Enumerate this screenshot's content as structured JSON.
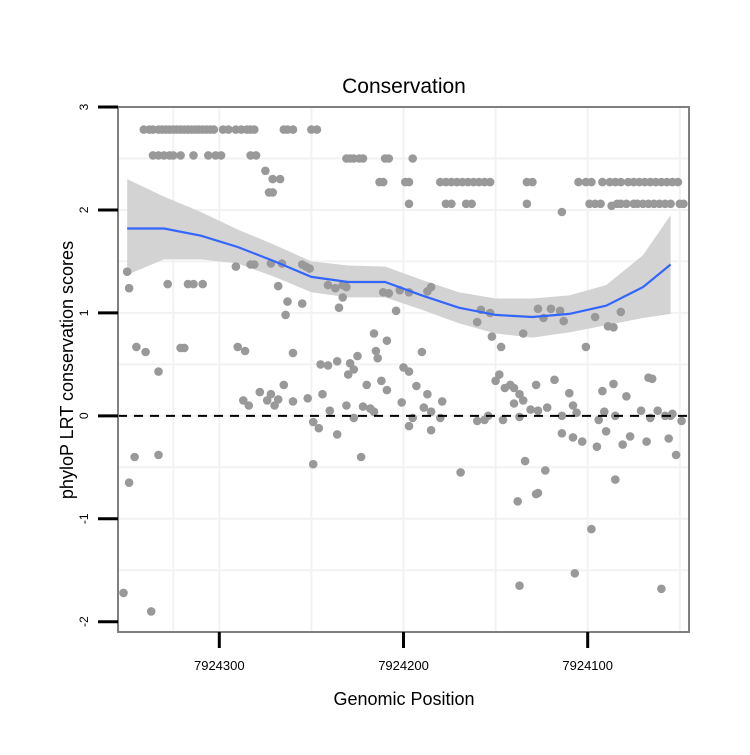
{
  "chart_data": {
    "type": "scatter",
    "title": "Conservation",
    "xlabel": "Genomic Position",
    "ylabel": "phyloP LRT conservation scores",
    "x_reversed": true,
    "xlim": [
      7924355,
      7924045
    ],
    "ylim": [
      -2.1,
      3.0
    ],
    "x_ticks": [
      7924300,
      7924200,
      7924100
    ],
    "x_tick_labels": [
      "7924300",
      "7924200",
      "7924100"
    ],
    "y_ticks": [
      -2,
      -1,
      0,
      1,
      2,
      3
    ],
    "y_tick_labels": [
      "-2",
      "-1",
      "0",
      "1",
      "2",
      "3"
    ],
    "reference_line": {
      "y": 0,
      "style": "dashed"
    },
    "colors": {
      "points": "#999999",
      "smooth_line": "#3366FF",
      "ribbon": "#D3D3D3",
      "panel_border": "#7f7f7f",
      "grid": "#f2f2f2",
      "reference": "#000000"
    },
    "points_series": {
      "name": "phyloP scores",
      "points": [
        [
          7924341,
          2.78
        ],
        [
          7924338,
          2.78
        ],
        [
          7924336,
          2.78
        ],
        [
          7924333,
          2.78
        ],
        [
          7924331,
          2.78
        ],
        [
          7924329,
          2.78
        ],
        [
          7924327,
          2.78
        ],
        [
          7924325,
          2.78
        ],
        [
          7924323,
          2.78
        ],
        [
          7924321,
          2.78
        ],
        [
          7924319,
          2.78
        ],
        [
          7924317,
          2.78
        ],
        [
          7924315,
          2.78
        ],
        [
          7924313,
          2.78
        ],
        [
          7924311,
          2.78
        ],
        [
          7924309,
          2.78
        ],
        [
          7924307,
          2.78
        ],
        [
          7924305,
          2.78
        ],
        [
          7924303,
          2.78
        ],
        [
          7924298,
          2.78
        ],
        [
          7924295,
          2.78
        ],
        [
          7924291,
          2.78
        ],
        [
          7924288,
          2.78
        ],
        [
          7924285,
          2.78
        ],
        [
          7924283,
          2.78
        ],
        [
          7924281,
          2.78
        ],
        [
          7924265,
          2.78
        ],
        [
          7924263,
          2.78
        ],
        [
          7924260,
          2.78
        ],
        [
          7924250,
          2.78
        ],
        [
          7924247,
          2.78
        ],
        [
          7924336,
          2.53
        ],
        [
          7924333,
          2.53
        ],
        [
          7924330,
          2.53
        ],
        [
          7924327,
          2.53
        ],
        [
          7924325,
          2.53
        ],
        [
          7924321,
          2.53
        ],
        [
          7924314,
          2.53
        ],
        [
          7924306,
          2.53
        ],
        [
          7924302,
          2.53
        ],
        [
          7924299,
          2.53
        ],
        [
          7924283,
          2.53
        ],
        [
          7924280,
          2.53
        ],
        [
          7924231,
          2.5
        ],
        [
          7924229,
          2.5
        ],
        [
          7924227,
          2.5
        ],
        [
          7924224,
          2.5
        ],
        [
          7924222,
          2.5
        ],
        [
          7924210,
          2.5
        ],
        [
          7924208,
          2.5
        ],
        [
          7924195,
          2.5
        ],
        [
          7924275,
          2.38
        ],
        [
          7924271,
          2.3
        ],
        [
          7924267,
          2.3
        ],
        [
          7924273,
          2.17
        ],
        [
          7924271,
          2.17
        ],
        [
          7924213,
          2.27
        ],
        [
          7924211,
          2.27
        ],
        [
          7924199,
          2.27
        ],
        [
          7924197,
          2.27
        ],
        [
          7924180,
          2.27
        ],
        [
          7924177,
          2.27
        ],
        [
          7924174,
          2.27
        ],
        [
          7924171,
          2.27
        ],
        [
          7924168,
          2.27
        ],
        [
          7924165,
          2.27
        ],
        [
          7924162,
          2.27
        ],
        [
          7924159,
          2.27
        ],
        [
          7924156,
          2.27
        ],
        [
          7924153,
          2.27
        ],
        [
          7924133,
          2.27
        ],
        [
          7924130,
          2.27
        ],
        [
          7924101,
          2.27
        ],
        [
          7924098,
          2.27
        ],
        [
          7924088,
          2.27
        ],
        [
          7924085,
          2.27
        ],
        [
          7924078,
          2.27
        ],
        [
          7924075,
          2.27
        ],
        [
          7924072,
          2.27
        ],
        [
          7924069,
          2.27
        ],
        [
          7924066,
          2.27
        ],
        [
          7924063,
          2.27
        ],
        [
          7924060,
          2.27
        ],
        [
          7924057,
          2.27
        ],
        [
          7924054,
          2.27
        ],
        [
          7924051,
          2.27
        ],
        [
          7924105,
          2.27
        ],
        [
          7924082,
          2.27
        ],
        [
          7924092,
          2.27
        ],
        [
          7924197,
          2.06
        ],
        [
          7924177,
          2.06
        ],
        [
          7924174,
          2.06
        ],
        [
          7924166,
          2.06
        ],
        [
          7924163,
          2.06
        ],
        [
          7924133,
          2.06
        ],
        [
          7924099,
          2.06
        ],
        [
          7924096,
          2.06
        ],
        [
          7924093,
          2.06
        ],
        [
          7924084,
          2.06
        ],
        [
          7924082,
          2.06
        ],
        [
          7924079,
          2.06
        ],
        [
          7924075,
          2.06
        ],
        [
          7924073,
          2.06
        ],
        [
          7924070,
          2.06
        ],
        [
          7924067,
          2.06
        ],
        [
          7924064,
          2.06
        ],
        [
          7924061,
          2.06
        ],
        [
          7924058,
          2.06
        ],
        [
          7924055,
          2.06
        ],
        [
          7924050,
          2.06
        ],
        [
          7924048,
          2.06
        ],
        [
          7924087,
          2.04
        ],
        [
          7924114,
          1.98
        ],
        [
          7924350,
          1.4
        ],
        [
          7924349,
          1.24
        ],
        [
          7924328,
          1.28
        ],
        [
          7924317,
          1.28
        ],
        [
          7924314,
          1.28
        ],
        [
          7924309,
          1.28
        ],
        [
          7924291,
          1.45
        ],
        [
          7924283,
          1.47
        ],
        [
          7924281,
          1.47
        ],
        [
          7924272,
          1.48
        ],
        [
          7924266,
          1.48
        ],
        [
          7924268,
          1.26
        ],
        [
          7924255,
          1.47
        ],
        [
          7924253,
          1.45
        ],
        [
          7924251,
          1.43
        ],
        [
          7924241,
          1.27
        ],
        [
          7924237,
          1.24
        ],
        [
          7924233,
          1.27
        ],
        [
          7924231,
          1.25
        ],
        [
          7924211,
          1.2
        ],
        [
          7924208,
          1.19
        ],
        [
          7924202,
          1.22
        ],
        [
          7924197,
          1.2
        ],
        [
          7924187,
          1.21
        ],
        [
          7924185,
          1.25
        ],
        [
          7924158,
          1.03
        ],
        [
          7924153,
          1.0
        ],
        [
          7924120,
          1.04
        ],
        [
          7924115,
          1.02
        ],
        [
          7924096,
          0.96
        ],
        [
          7924089,
          0.87
        ],
        [
          7924086,
          0.86
        ],
        [
          7924082,
          1.01
        ],
        [
          7924345,
          0.67
        ],
        [
          7924340,
          0.62
        ],
        [
          7924321,
          0.66
        ],
        [
          7924319,
          0.66
        ],
        [
          7924333,
          0.43
        ],
        [
          7924290,
          0.67
        ],
        [
          7924286,
          0.63
        ],
        [
          7924260,
          0.61
        ],
        [
          7924263,
          1.11
        ],
        [
          7924264,
          0.98
        ],
        [
          7924255,
          1.09
        ],
        [
          7924245,
          0.5
        ],
        [
          7924241,
          0.49
        ],
        [
          7924225,
          0.58
        ],
        [
          7924236,
          0.53
        ],
        [
          7924229,
          0.51
        ],
        [
          7924227,
          0.45
        ],
        [
          7924215,
          0.63
        ],
        [
          7924214,
          0.56
        ],
        [
          7924204,
          1.02
        ],
        [
          7924200,
          0.47
        ],
        [
          7924190,
          0.62
        ],
        [
          7924235,
          1.05
        ],
        [
          7924233,
          1.15
        ],
        [
          7924216,
          0.8
        ],
        [
          7924209,
          0.73
        ],
        [
          7924160,
          0.91
        ],
        [
          7924152,
          0.77
        ],
        [
          7924147,
          0.67
        ],
        [
          7924135,
          0.8
        ],
        [
          7924124,
          0.95
        ],
        [
          7924101,
          0.67
        ],
        [
          7924113,
          0.92
        ],
        [
          7924127,
          1.04
        ],
        [
          7924287,
          0.15
        ],
        [
          7924284,
          0.1
        ],
        [
          7924272,
          0.21
        ],
        [
          7924268,
          0.16
        ],
        [
          7924265,
          0.3
        ],
        [
          7924270,
          0.1
        ],
        [
          7924278,
          0.23
        ],
        [
          7924274,
          0.15
        ],
        [
          7924260,
          0.14
        ],
        [
          7924252,
          0.17
        ],
        [
          7924244,
          0.21
        ],
        [
          7924240,
          0.05
        ],
        [
          7924230,
          0.4
        ],
        [
          7924222,
          0.09
        ],
        [
          7924220,
          0.3
        ],
        [
          7924218,
          0.07
        ],
        [
          7924212,
          0.34
        ],
        [
          7924209,
          0.25
        ],
        [
          7924201,
          0.13
        ],
        [
          7924197,
          0.43
        ],
        [
          7924193,
          0.29
        ],
        [
          7924187,
          0.21
        ],
        [
          7924185,
          0.04
        ],
        [
          7924179,
          0.14
        ],
        [
          7924150,
          0.34
        ],
        [
          7924148,
          0.4
        ],
        [
          7924145,
          0.27
        ],
        [
          7924142,
          0.3
        ],
        [
          7924140,
          0.27
        ],
        [
          7924137,
          0.21
        ],
        [
          7924135,
          0.15
        ],
        [
          7924128,
          0.3
        ],
        [
          7924118,
          0.35
        ],
        [
          7924110,
          0.22
        ],
        [
          7924092,
          0.24
        ],
        [
          7924086,
          0.31
        ],
        [
          7924079,
          0.19
        ],
        [
          7924067,
          0.37
        ],
        [
          7924065,
          0.36
        ],
        [
          7924062,
          0.05
        ],
        [
          7924055,
          0.0
        ],
        [
          7924249,
          -0.06
        ],
        [
          7924246,
          -0.12
        ],
        [
          7924231,
          0.1
        ],
        [
          7924227,
          -0.02
        ],
        [
          7924216,
          0.04
        ],
        [
          7924195,
          -0.02
        ],
        [
          7924189,
          0.08
        ],
        [
          7924160,
          -0.05
        ],
        [
          7924156,
          -0.04
        ],
        [
          7924154,
          0.0
        ],
        [
          7924146,
          -0.04
        ],
        [
          7924137,
          -0.01
        ],
        [
          7924127,
          0.05
        ],
        [
          7924122,
          0.08
        ],
        [
          7924114,
          0.0
        ],
        [
          7924108,
          0.1
        ],
        [
          7924106,
          0.03
        ],
        [
          7924094,
          -0.04
        ],
        [
          7924091,
          0.04
        ],
        [
          7924085,
          0.0
        ],
        [
          7924071,
          0.05
        ],
        [
          7924066,
          -0.02
        ],
        [
          7924058,
          0.0
        ],
        [
          7924049,
          -0.05
        ],
        [
          7924054,
          0.02
        ],
        [
          7924140,
          0.12
        ],
        [
          7924131,
          0.06
        ],
        [
          7924346,
          -0.4
        ],
        [
          7924333,
          -0.38
        ],
        [
          7924249,
          -0.47
        ],
        [
          7924236,
          -0.18
        ],
        [
          7924223,
          -0.4
        ],
        [
          7924197,
          -0.1
        ],
        [
          7924185,
          -0.14
        ],
        [
          7924180,
          -0.02
        ],
        [
          7924169,
          -0.55
        ],
        [
          7924134,
          -0.44
        ],
        [
          7924128,
          -0.76
        ],
        [
          7924127,
          -0.75
        ],
        [
          7924123,
          -0.53
        ],
        [
          7924114,
          -0.17
        ],
        [
          7924108,
          -0.21
        ],
        [
          7924103,
          -0.25
        ],
        [
          7924095,
          -0.3
        ],
        [
          7924090,
          -0.15
        ],
        [
          7924085,
          -0.62
        ],
        [
          7924081,
          -0.28
        ],
        [
          7924077,
          -0.2
        ],
        [
          7924068,
          -0.25
        ],
        [
          7924056,
          -0.22
        ],
        [
          7924052,
          -0.38
        ],
        [
          7924349,
          -0.65
        ],
        [
          7924138,
          -0.83
        ],
        [
          7924098,
          -1.1
        ],
        [
          7924352,
          -1.72
        ],
        [
          7924337,
          -1.9
        ],
        [
          7924137,
          -1.65
        ],
        [
          7924107,
          -1.53
        ],
        [
          7924060,
          -1.68
        ]
      ]
    },
    "smooth_series": {
      "name": "loess fit",
      "x": [
        7924350,
        7924330,
        7924310,
        7924290,
        7924270,
        7924250,
        7924230,
        7924210,
        7924190,
        7924170,
        7924150,
        7924130,
        7924110,
        7924090,
        7924070,
        7924055
      ],
      "y": [
        1.82,
        1.82,
        1.75,
        1.64,
        1.5,
        1.35,
        1.3,
        1.3,
        1.17,
        1.05,
        0.98,
        0.96,
        0.99,
        1.07,
        1.25,
        1.47
      ],
      "lower": [
        1.37,
        1.52,
        1.52,
        1.48,
        1.35,
        1.2,
        1.15,
        1.15,
        1.03,
        0.9,
        0.8,
        0.76,
        0.81,
        0.88,
        0.95,
        0.99
      ],
      "upper": [
        2.3,
        2.13,
        1.98,
        1.81,
        1.66,
        1.5,
        1.46,
        1.45,
        1.32,
        1.2,
        1.14,
        1.14,
        1.17,
        1.27,
        1.56,
        1.95
      ]
    }
  }
}
